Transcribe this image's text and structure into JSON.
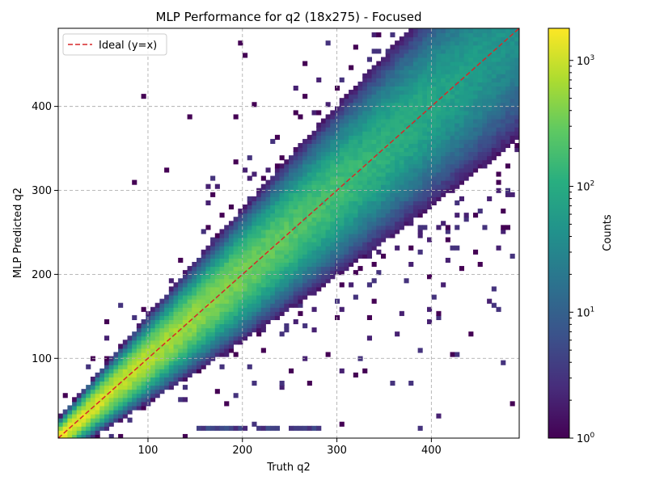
{
  "chart_data": {
    "type": "heatmap",
    "title": "MLP Performance for q2 (18x275) - Focused",
    "xlabel": "Truth q2",
    "ylabel": "MLP Predicted q2",
    "xlim": [
      5,
      493
    ],
    "ylim": [
      5,
      493
    ],
    "x_ticks": [
      100,
      200,
      300,
      400
    ],
    "y_ticks": [
      100,
      200,
      300,
      400
    ],
    "grid": true,
    "grid_style": "dashed",
    "legend_placement": "upper-left",
    "reference_line": {
      "name": "Ideal (y=x)",
      "color": "#d62728",
      "style": "dashed",
      "from": [
        5,
        5
      ],
      "to": [
        493,
        493
      ]
    },
    "bin_count": 100,
    "colormap": "viridis",
    "colorbar": {
      "label": "Counts",
      "scale": "log",
      "range": [
        1,
        1800
      ],
      "ticks": [
        {
          "value": 1,
          "label": "10^0"
        },
        {
          "value": 10,
          "label": "10^1"
        },
        {
          "value": 100,
          "label": "10^2"
        },
        {
          "value": 1000,
          "label": "10^3"
        }
      ]
    },
    "description_of_density": {
      "diagonal_peak_counts": 1500,
      "diagonal_counts_at_x_400": 80,
      "scatter_band_counts": [
        1,
        10
      ]
    }
  }
}
